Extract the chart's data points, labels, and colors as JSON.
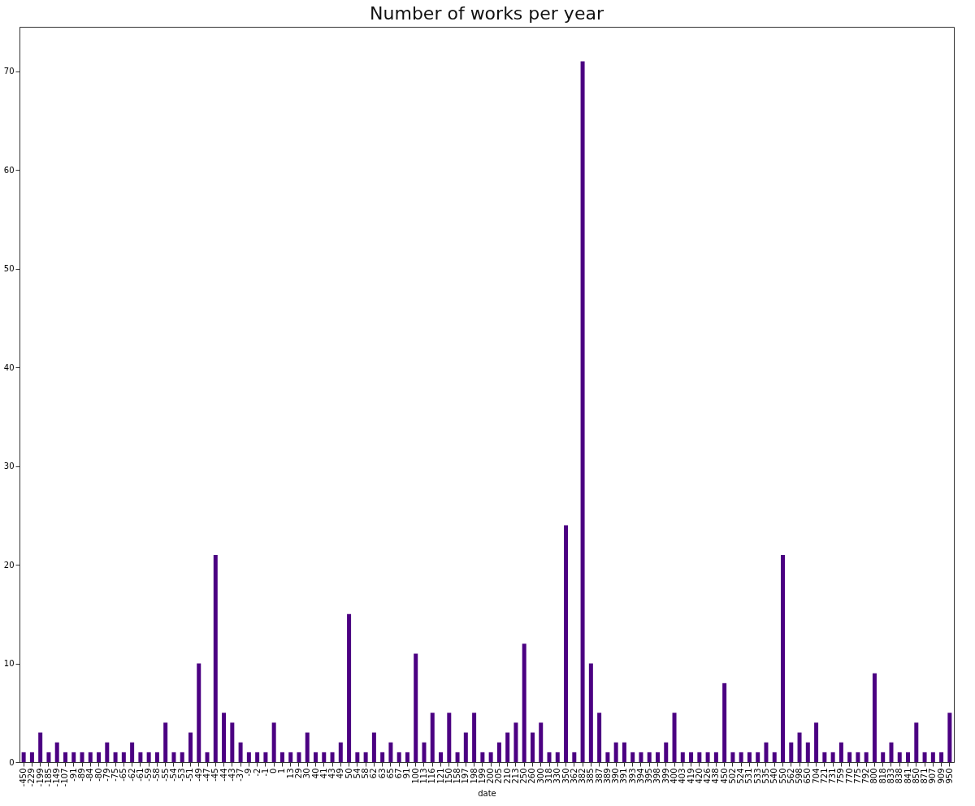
{
  "chart_data": {
    "type": "bar",
    "title": "Number of works per year",
    "xlabel": "date",
    "color": "#4b0082",
    "categories": [
      "-450",
      "-229",
      "-199",
      "-185",
      "-149",
      "-107",
      "-91",
      "-89",
      "-84",
      "-80",
      "-79",
      "-75",
      "-65",
      "-62",
      "-61",
      "-59",
      "-58",
      "-55",
      "-54",
      "-53",
      "-51",
      "-49",
      "-47",
      "-45",
      "-44",
      "-43",
      "-37",
      "-9",
      "-2",
      "-1",
      "0",
      "1",
      "13",
      "29",
      "30",
      "40",
      "41",
      "43",
      "49",
      "50",
      "54",
      "58",
      "62",
      "63",
      "65",
      "67",
      "91",
      "100",
      "113",
      "116",
      "121",
      "150",
      "158",
      "197",
      "198",
      "199",
      "200",
      "205",
      "210",
      "213",
      "250",
      "260",
      "300",
      "318",
      "330",
      "350",
      "362",
      "382",
      "385",
      "387",
      "389",
      "390",
      "391",
      "393",
      "394",
      "395",
      "398",
      "399",
      "400",
      "403",
      "419",
      "420",
      "426",
      "438",
      "450",
      "502",
      "524",
      "531",
      "533",
      "535",
      "540",
      "550",
      "562",
      "598",
      "650",
      "704",
      "721",
      "731",
      "759",
      "770",
      "775",
      "792",
      "800",
      "818",
      "833",
      "838",
      "841",
      "850",
      "871",
      "907",
      "909",
      "950"
    ],
    "values": [
      1,
      1,
      3,
      1,
      2,
      1,
      1,
      1,
      1,
      1,
      2,
      1,
      1,
      2,
      1,
      1,
      1,
      4,
      1,
      1,
      3,
      10,
      1,
      21,
      5,
      4,
      2,
      1,
      1,
      1,
      4,
      1,
      1,
      1,
      3,
      1,
      1,
      1,
      2,
      15,
      1,
      1,
      3,
      1,
      2,
      1,
      1,
      11,
      2,
      5,
      1,
      5,
      1,
      3,
      5,
      1,
      1,
      2,
      3,
      4,
      12,
      3,
      4,
      1,
      1,
      24,
      1,
      71,
      10,
      5,
      1,
      2,
      2,
      1,
      1,
      1,
      1,
      2,
      5,
      1,
      1,
      1,
      1,
      1,
      8,
      1,
      1,
      1,
      1,
      2,
      1,
      21,
      2,
      3,
      2,
      4,
      1,
      1,
      2,
      1,
      1,
      1,
      9,
      1,
      2,
      1,
      1,
      4,
      1,
      1,
      1,
      5
    ],
    "ylim": [
      0,
      74.5
    ],
    "yticks": [
      0,
      10,
      20,
      30,
      40,
      50,
      60,
      70
    ],
    "grid": false
  }
}
